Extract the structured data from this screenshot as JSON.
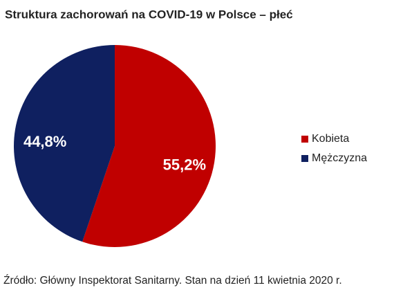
{
  "chart_data": {
    "type": "pie",
    "title": "Struktura zachorowań na COVID-19 w Polsce – płeć",
    "categories": [
      "Kobieta",
      "Mężczyzna"
    ],
    "values": [
      55.2,
      44.8
    ],
    "value_labels": [
      "55,2%",
      "44,8%"
    ],
    "colors": [
      "#c00000",
      "#0f2060"
    ],
    "legend": "right",
    "source": "Źródło: Główny Inspektorat Sanitarny. Stan na dzień 11 kwietnia 2020 r."
  }
}
